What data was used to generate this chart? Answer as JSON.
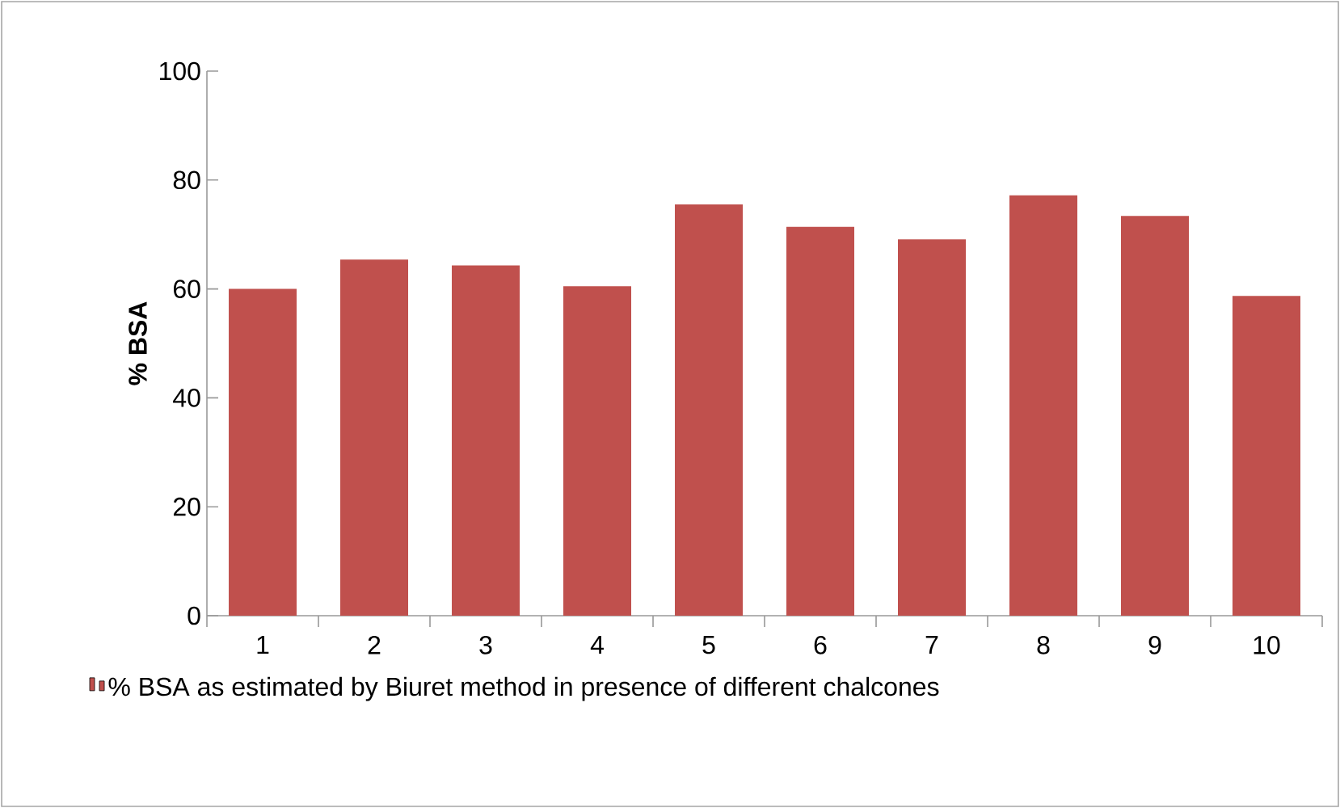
{
  "chart_data": {
    "type": "bar",
    "ylabel": "% BSA",
    "categories": [
      "1",
      "2",
      "3",
      "4",
      "5",
      "6",
      "7",
      "8",
      "9",
      "10"
    ],
    "series": [
      {
        "name": "% BSA as estimated by Biuret method in presence of different chalcones",
        "color": "#c0504d",
        "values": [
          60.0,
          65.4,
          64.3,
          60.5,
          75.5,
          71.4,
          69.1,
          77.2,
          73.4,
          58.7
        ]
      }
    ],
    "ylim": [
      0,
      100
    ],
    "yticks": [
      0,
      20,
      40,
      60,
      80,
      100
    ],
    "legend": "bottom"
  }
}
